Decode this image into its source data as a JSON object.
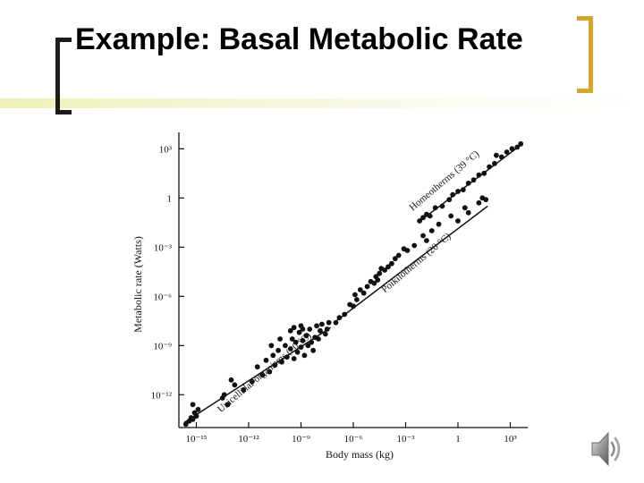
{
  "slide": {
    "title": "Example: Basal Metabolic Rate"
  },
  "colors": {
    "accent_bracket": "#d4a62a",
    "title_bracket": "#1c1c1c",
    "points": "#111111"
  },
  "icons": {
    "audio": "speaker-icon"
  },
  "chart_data": {
    "type": "scatter",
    "title": "",
    "xlabel": "Body mass (kg)",
    "ylabel": "Metabolic rate (Watts)",
    "x_scale": "log",
    "y_scale": "log",
    "xlim_exponent": [
      -16,
      4
    ],
    "ylim_exponent": [
      -14,
      4
    ],
    "x_ticks": [
      {
        "exp": -15,
        "label": "10⁻¹⁵"
      },
      {
        "exp": -12,
        "label": "10⁻¹²"
      },
      {
        "exp": -9,
        "label": "10⁻⁹"
      },
      {
        "exp": -6,
        "label": "10⁻⁶"
      },
      {
        "exp": -3,
        "label": "10⁻³"
      },
      {
        "exp": 0,
        "label": "1"
      },
      {
        "exp": 3,
        "label": "10³"
      }
    ],
    "y_ticks": [
      {
        "exp": 3,
        "label": "10³"
      },
      {
        "exp": 0,
        "label": "1"
      },
      {
        "exp": -3,
        "label": "10⁻³"
      },
      {
        "exp": -6,
        "label": "10⁻⁶"
      },
      {
        "exp": -9,
        "label": "10⁻⁹"
      },
      {
        "exp": -12,
        "label": "10⁻¹²"
      }
    ],
    "series": [
      {
        "name": "Unicellular organisms (20 °C)",
        "fit_log10": [
          [
            -15.7,
            -13.7
          ],
          [
            -7.3,
            -7.9
          ]
        ],
        "label_anchor_log10": [
          -13.6,
          -13.1
        ],
        "label_angle": -40,
        "points_log10": [
          [
            -15.6,
            -13.8
          ],
          [
            -15.4,
            -13.6
          ],
          [
            -15.3,
            -13.4
          ],
          [
            -15.2,
            -13.5
          ],
          [
            -15.1,
            -13.1
          ],
          [
            -15.0,
            -13.3
          ],
          [
            -15.2,
            -12.6
          ],
          [
            -14.9,
            -12.9
          ],
          [
            -13.5,
            -12.2
          ],
          [
            -13.4,
            -12.0
          ],
          [
            -13.2,
            -12.6
          ],
          [
            -13.0,
            -11.1
          ],
          [
            -12.8,
            -11.4
          ],
          [
            -12.3,
            -11.7
          ],
          [
            -11.8,
            -11.2
          ],
          [
            -11.2,
            -10.8
          ],
          [
            -11.0,
            -9.9
          ],
          [
            -10.8,
            -10.6
          ],
          [
            -10.6,
            -9.6
          ],
          [
            -10.5,
            -10.2
          ],
          [
            -10.3,
            -9.3
          ],
          [
            -10.1,
            -10.0
          ],
          [
            -9.9,
            -9.0
          ],
          [
            -9.8,
            -9.7
          ],
          [
            -9.6,
            -9.2
          ],
          [
            -9.5,
            -8.6
          ],
          [
            -9.4,
            -9.8
          ],
          [
            -9.3,
            -8.8
          ],
          [
            -9.2,
            -9.4
          ],
          [
            -9.1,
            -8.2
          ],
          [
            -9.0,
            -9.1
          ],
          [
            -8.9,
            -8.7
          ],
          [
            -8.8,
            -9.6
          ],
          [
            -8.7,
            -8.4
          ],
          [
            -8.6,
            -9.0
          ],
          [
            -8.5,
            -8.0
          ],
          [
            -8.4,
            -8.8
          ],
          [
            -8.3,
            -9.3
          ],
          [
            -8.2,
            -8.5
          ],
          [
            -8.1,
            -7.8
          ],
          [
            -8.0,
            -8.6
          ],
          [
            -7.9,
            -8.1
          ],
          [
            -7.8,
            -7.7
          ],
          [
            -7.6,
            -8.3
          ],
          [
            -7.5,
            -8.0
          ],
          [
            -7.4,
            -7.6
          ],
          [
            -9.6,
            -8.1
          ],
          [
            -10.2,
            -8.6
          ],
          [
            -9.4,
            -7.9
          ],
          [
            -9.0,
            -7.8
          ],
          [
            -8.9,
            -8.0
          ],
          [
            -10.7,
            -9.0
          ],
          [
            -11.5,
            -10.3
          ]
        ]
      },
      {
        "name": "Poikilotherms (20 °C)",
        "fit_log10": [
          [
            -7.1,
            -7.6
          ],
          [
            1.7,
            -0.5
          ]
        ],
        "label_anchor_log10": [
          -4.2,
          -5.8
        ],
        "label_angle": -40,
        "points_log10": [
          [
            -7.0,
            -7.6
          ],
          [
            -6.8,
            -7.3
          ],
          [
            -6.5,
            -7.1
          ],
          [
            -6.2,
            -6.5
          ],
          [
            -6.0,
            -6.6
          ],
          [
            -5.8,
            -6.2
          ],
          [
            -5.6,
            -5.6
          ],
          [
            -5.4,
            -5.8
          ],
          [
            -5.2,
            -5.4
          ],
          [
            -5.0,
            -5.1
          ],
          [
            -4.8,
            -5.2
          ],
          [
            -4.7,
            -4.8
          ],
          [
            -4.5,
            -4.6
          ],
          [
            -4.4,
            -4.3
          ],
          [
            -4.2,
            -4.4
          ],
          [
            -4.0,
            -4.2
          ],
          [
            -3.8,
            -4.0
          ],
          [
            -3.6,
            -3.7
          ],
          [
            -3.4,
            -3.5
          ],
          [
            -3.1,
            -3.1
          ],
          [
            -2.9,
            -3.2
          ],
          [
            -2.5,
            -2.9
          ],
          [
            -2.0,
            -2.3
          ],
          [
            -1.8,
            -2.6
          ],
          [
            -1.5,
            -2.0
          ],
          [
            -1.1,
            -1.6
          ],
          [
            -0.4,
            -1.1
          ],
          [
            0.0,
            -1.4
          ],
          [
            0.4,
            -0.6
          ],
          [
            0.6,
            -0.9
          ],
          [
            1.2,
            -0.3
          ],
          [
            1.4,
            0.0
          ],
          [
            1.6,
            -0.1
          ],
          [
            -5.9,
            -5.9
          ],
          [
            -4.6,
            -5.0
          ]
        ]
      },
      {
        "name": "Homeotherms (39 °C)",
        "fit_log10": [
          [
            -2.3,
            -1.5
          ],
          [
            3.7,
            3.3
          ]
        ],
        "label_anchor_log10": [
          -2.6,
          -0.8
        ],
        "label_angle": -40,
        "points_log10": [
          [
            -2.2,
            -1.4
          ],
          [
            -2.0,
            -1.2
          ],
          [
            -1.8,
            -1.0
          ],
          [
            -1.6,
            -1.1
          ],
          [
            -1.3,
            -0.6
          ],
          [
            -0.9,
            -0.5
          ],
          [
            -0.5,
            -0.1
          ],
          [
            -0.3,
            0.2
          ],
          [
            0.0,
            0.4
          ],
          [
            0.3,
            0.5
          ],
          [
            0.6,
            0.9
          ],
          [
            0.9,
            1.1
          ],
          [
            1.2,
            1.4
          ],
          [
            1.5,
            1.5
          ],
          [
            1.8,
            1.9
          ],
          [
            2.1,
            2.1
          ],
          [
            2.5,
            2.5
          ],
          [
            2.8,
            2.8
          ],
          [
            3.1,
            3.0
          ],
          [
            3.4,
            3.1
          ],
          [
            3.6,
            3.3
          ],
          [
            2.2,
            2.6
          ]
        ]
      }
    ]
  }
}
